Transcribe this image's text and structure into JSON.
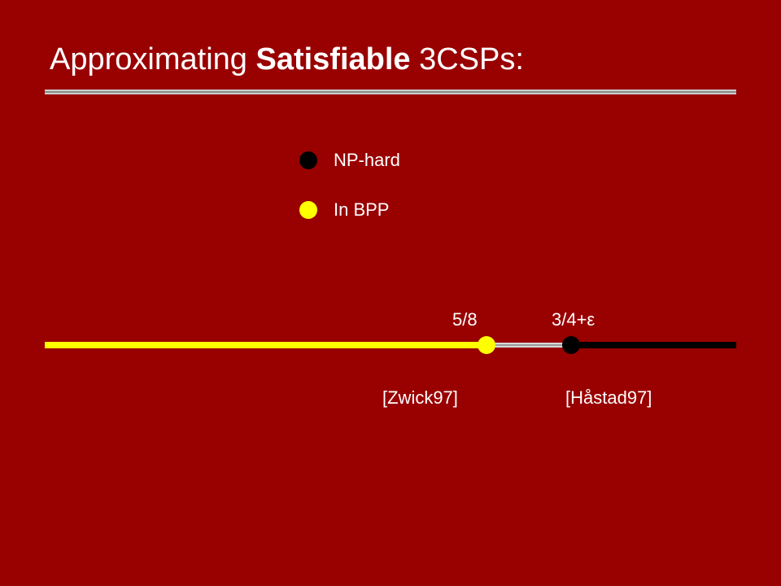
{
  "slide": {
    "title_prefix": "Approximating ",
    "title_emphasis": "Satisfiable",
    "title_suffix": " 3CSPs:"
  },
  "legend": [
    {
      "label": "NP-hard",
      "color": "#000000"
    },
    {
      "label": "In BPP",
      "color": "#ffff00"
    }
  ],
  "number_line": {
    "colors": {
      "easy": "#ffff00",
      "gap": "#d8d8d8",
      "hard": "#000000"
    },
    "markers": [
      {
        "label": "5/8",
        "value": 0.625,
        "color": "#ffff00",
        "citation": "[Zwick97]"
      },
      {
        "label": "3/4+ε",
        "value": 0.75,
        "color": "#000000",
        "citation": "[Håstad97]"
      }
    ]
  }
}
